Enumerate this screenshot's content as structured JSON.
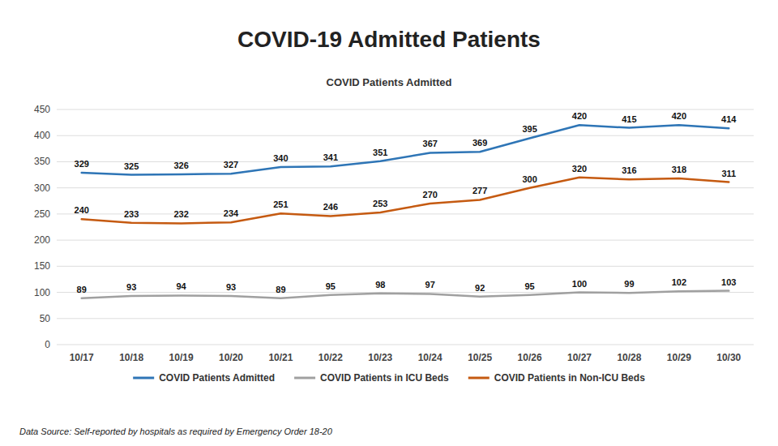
{
  "chart_data": {
    "type": "line",
    "title": "COVID-19 Admitted Patients",
    "subtitle": "COVID Patients Admitted",
    "categories": [
      "10/17",
      "10/18",
      "10/19",
      "10/20",
      "10/21",
      "10/22",
      "10/23",
      "10/24",
      "10/25",
      "10/26",
      "10/27",
      "10/28",
      "10/29",
      "10/30"
    ],
    "series": [
      {
        "name": "COVID Patients Admitted",
        "color": "#2E75B6",
        "values": [
          329,
          325,
          326,
          327,
          340,
          341,
          351,
          367,
          369,
          395,
          420,
          415,
          420,
          414
        ]
      },
      {
        "name": "COVID Patients in ICU Beds",
        "color": "#A0A0A0",
        "values": [
          89,
          93,
          94,
          93,
          89,
          95,
          98,
          97,
          92,
          95,
          100,
          99,
          102,
          103
        ]
      },
      {
        "name": "COVID Patients in Non-ICU Beds",
        "color": "#C55A11",
        "values": [
          240,
          233,
          232,
          234,
          251,
          246,
          253,
          270,
          277,
          300,
          320,
          316,
          318,
          311
        ]
      }
    ],
    "ylim": [
      0,
      450
    ],
    "yticks": [
      0,
      50,
      100,
      150,
      200,
      250,
      300,
      350,
      400,
      450
    ],
    "grid": true,
    "legend": "bottom",
    "data_labels": true,
    "annotations": [
      "Data Source: Self-reported by hospitals as required by Emergency Order 18-20"
    ]
  }
}
